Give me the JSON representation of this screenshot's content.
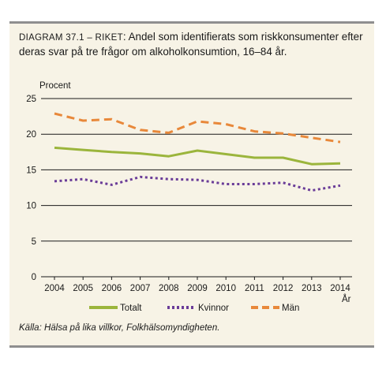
{
  "title_label": "DIAGRAM 37.1 – RIKET",
  "title_text": ": Andel som identifierats som riskkonsumenter efter deras svar på tre frågor om alkoholkonsumtion, 16–84 år.",
  "source": "Källa: Hälsa på lika villkor, Folkhälsomyndigheten.",
  "chart_data": {
    "type": "line",
    "ylabel": "Procent",
    "xlabel": "År",
    "ylim": [
      0,
      25
    ],
    "yticks": [
      "0",
      "5",
      "10",
      "15",
      "20",
      "25"
    ],
    "grid": "horizontal",
    "legend_position": "bottom",
    "categories": [
      "2004",
      "2005",
      "2006",
      "2007",
      "2008",
      "2009",
      "2010",
      "2011",
      "2012",
      "2013",
      "2014"
    ],
    "series": [
      {
        "name": "Totalt",
        "color": "#9bb53c",
        "style": "solid",
        "values": [
          18.1,
          17.8,
          17.5,
          17.3,
          16.9,
          17.7,
          17.2,
          16.7,
          16.7,
          15.8,
          15.9
        ]
      },
      {
        "name": "Kvinnor",
        "color": "#6a3c98",
        "style": "dotted",
        "values": [
          13.4,
          13.7,
          12.9,
          14.0,
          13.7,
          13.6,
          13.0,
          13.0,
          13.2,
          12.1,
          12.8
        ]
      },
      {
        "name": "Män",
        "color": "#e8883a",
        "style": "dashed",
        "values": [
          22.9,
          21.9,
          22.1,
          20.6,
          20.2,
          21.8,
          21.4,
          20.4,
          20.1,
          19.5,
          18.9
        ]
      }
    ]
  }
}
